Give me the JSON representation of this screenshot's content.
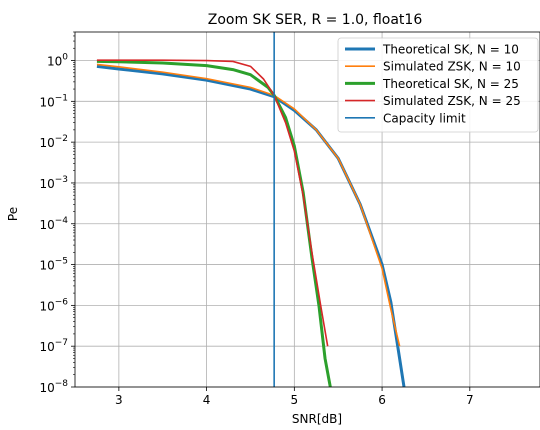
{
  "chart_data": {
    "type": "line",
    "title": "Zoom SK SER, R = 1.0, float16",
    "xlabel": "SNR[dB]",
    "ylabel": "Pe",
    "xlim": [
      2.5,
      7.8
    ],
    "ylim": [
      1e-08,
      5
    ],
    "yscale": "log",
    "grid": true,
    "legend_position": "top-right",
    "x_ticks": [
      {
        "value": 3,
        "label": "3"
      },
      {
        "value": 4,
        "label": "4"
      },
      {
        "value": 5,
        "label": "5"
      },
      {
        "value": 6,
        "label": "6"
      },
      {
        "value": 7,
        "label": "7"
      }
    ],
    "y_ticks": [
      {
        "exp": 0,
        "base": "10",
        "sup": "0"
      },
      {
        "exp": -1,
        "base": "10",
        "sup": "−1"
      },
      {
        "exp": -2,
        "base": "10",
        "sup": "−2"
      },
      {
        "exp": -3,
        "base": "10",
        "sup": "−3"
      },
      {
        "exp": -4,
        "base": "10",
        "sup": "−4"
      },
      {
        "exp": -5,
        "base": "10",
        "sup": "−5"
      },
      {
        "exp": -6,
        "base": "10",
        "sup": "−6"
      },
      {
        "exp": -7,
        "base": "10",
        "sup": "−7"
      },
      {
        "exp": -8,
        "base": "10",
        "sup": "−8"
      }
    ],
    "series": [
      {
        "name": "Theoretical SK, N = 10",
        "color": "#1f77b4",
        "width": "thick",
        "x": [
          2.75,
          3.0,
          3.5,
          4.0,
          4.5,
          4.77,
          5.0,
          5.25,
          5.5,
          5.75,
          6.0,
          6.1,
          6.2,
          6.25
        ],
        "y": [
          0.72,
          0.62,
          0.47,
          0.33,
          0.2,
          0.13,
          0.06,
          0.02,
          0.004,
          0.0003,
          1e-05,
          1.2e-06,
          5e-08,
          1e-08
        ]
      },
      {
        "name": "Simulated ZSK, N = 10",
        "color": "#ff7f0e",
        "width": "normal",
        "x": [
          2.75,
          3.0,
          3.5,
          4.0,
          4.5,
          4.77,
          5.0,
          5.25,
          5.5,
          5.75,
          6.0,
          6.1,
          6.2
        ],
        "y": [
          0.8,
          0.7,
          0.52,
          0.36,
          0.22,
          0.14,
          0.065,
          0.02,
          0.004,
          0.0003,
          8e-06,
          8e-07,
          1e-07
        ]
      },
      {
        "name": "Theoretical SK, N = 25",
        "color": "#2ca02c",
        "width": "thick",
        "x": [
          2.75,
          3.0,
          3.5,
          4.0,
          4.3,
          4.5,
          4.7,
          4.77,
          4.9,
          5.0,
          5.1,
          5.2,
          5.28,
          5.35,
          5.41
        ],
        "y": [
          0.95,
          0.93,
          0.87,
          0.75,
          0.6,
          0.45,
          0.22,
          0.14,
          0.04,
          0.008,
          0.0006,
          1.5e-05,
          1e-06,
          5e-08,
          1e-08
        ]
      },
      {
        "name": "Simulated ZSK, N = 25",
        "color": "#d62728",
        "width": "normal",
        "x": [
          2.75,
          3.0,
          3.5,
          4.0,
          4.3,
          4.5,
          4.65,
          4.77,
          4.9,
          5.0,
          5.1,
          5.2,
          5.3,
          5.38
        ],
        "y": [
          1.02,
          1.02,
          1.02,
          1.0,
          0.95,
          0.72,
          0.35,
          0.14,
          0.03,
          0.006,
          0.0005,
          2e-05,
          1e-06,
          1e-07
        ]
      },
      {
        "name": "Capacity limit",
        "color": "#1f77b4",
        "width": "normal",
        "vertical_x": 4.77
      }
    ]
  }
}
